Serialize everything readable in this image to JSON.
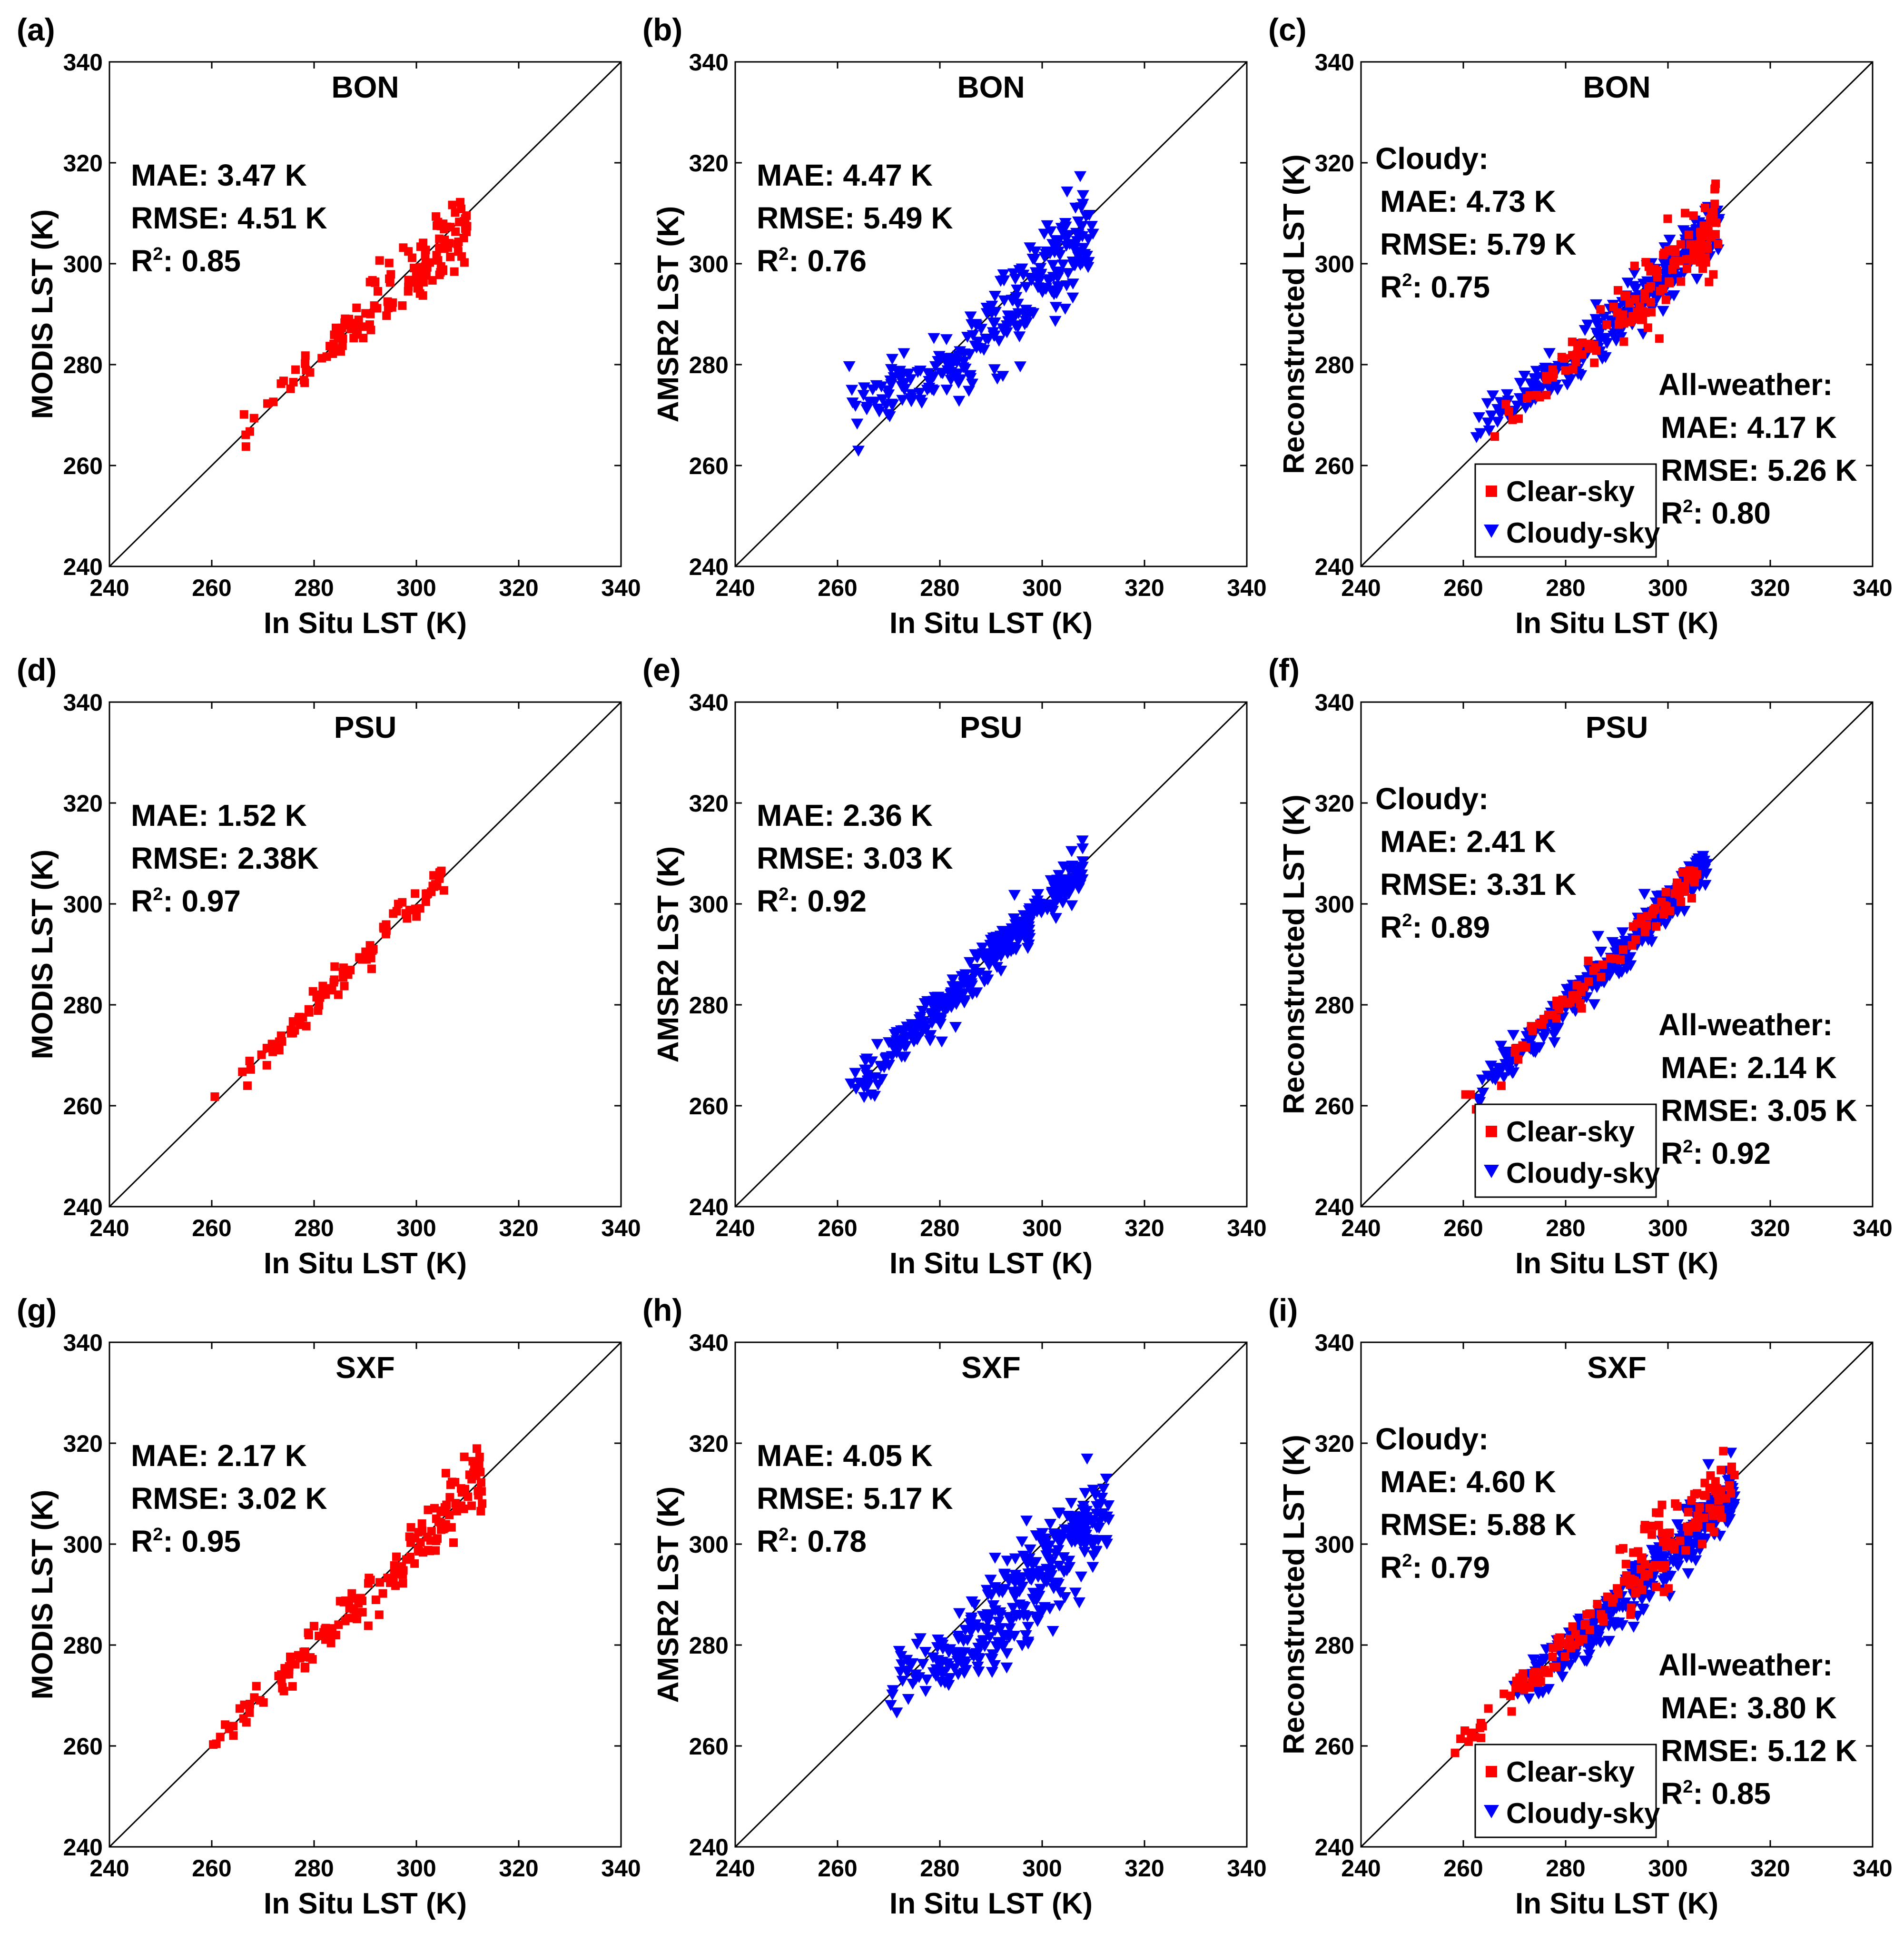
{
  "colors": {
    "clear": "#ff0000",
    "cloudy": "#0000ff",
    "axis": "#000000"
  },
  "chart_data": [
    {
      "panel_label": "(a)",
      "type": "scatter",
      "site": "BON",
      "xlabel": "In Situ LST (K)",
      "ylabel": "MODIS LST (K)",
      "xlim": [
        240,
        340
      ],
      "ylim": [
        240,
        340
      ],
      "xticks": [
        "240",
        "260",
        "280",
        "300",
        "320",
        "340"
      ],
      "yticks": [
        "240",
        "260",
        "280",
        "300",
        "320",
        "340"
      ],
      "stats": [
        "MAE: 3.47 K",
        "RMSE: 4.51 K",
        "R²: 0.85"
      ],
      "series": [
        {
          "name": "MODIS",
          "marker": "square",
          "color": "#ff0000"
        }
      ]
    },
    {
      "panel_label": "(b)",
      "type": "scatter",
      "site": "BON",
      "xlabel": "In Situ LST (K)",
      "ylabel": "AMSR2 LST (K)",
      "xlim": [
        240,
        340
      ],
      "ylim": [
        240,
        340
      ],
      "xticks": [
        "240",
        "260",
        "280",
        "300",
        "320",
        "340"
      ],
      "yticks": [
        "240",
        "260",
        "280",
        "300",
        "320",
        "340"
      ],
      "stats": [
        "MAE: 4.47 K",
        "RMSE: 5.49 K",
        "R²: 0.76"
      ],
      "series": [
        {
          "name": "AMSR2",
          "marker": "triangle",
          "color": "#0000ff"
        }
      ]
    },
    {
      "panel_label": "(c)",
      "type": "scatter",
      "site": "BON",
      "xlabel": "In Situ LST (K)",
      "ylabel": "Reconstructed LST (K)",
      "xlim": [
        240,
        340
      ],
      "ylim": [
        240,
        340
      ],
      "xticks": [
        "240",
        "260",
        "280",
        "300",
        "320",
        "340"
      ],
      "yticks": [
        "240",
        "260",
        "280",
        "300",
        "320",
        "340"
      ],
      "cloudy_stats": [
        "Cloudy:",
        "MAE: 4.73 K",
        "RMSE: 5.79 K",
        "R²: 0.75"
      ],
      "all_stats": [
        "All-weather:",
        "MAE: 4.17 K",
        "RMSE: 5.26 K",
        "R²: 0.80"
      ],
      "legend": [
        "Clear-sky",
        "Cloudy-sky"
      ]
    },
    {
      "panel_label": "(d)",
      "type": "scatter",
      "site": "PSU",
      "xlabel": "In Situ LST (K)",
      "ylabel": "MODIS LST (K)",
      "xlim": [
        240,
        340
      ],
      "ylim": [
        240,
        340
      ],
      "xticks": [
        "240",
        "260",
        "280",
        "300",
        "320",
        "340"
      ],
      "yticks": [
        "240",
        "260",
        "280",
        "300",
        "320",
        "340"
      ],
      "stats": [
        "MAE: 1.52 K",
        "RMSE: 2.38K",
        "R²: 0.97"
      ],
      "series": [
        {
          "name": "MODIS",
          "marker": "square",
          "color": "#ff0000"
        }
      ]
    },
    {
      "panel_label": "(e)",
      "type": "scatter",
      "site": "PSU",
      "xlabel": "In Situ LST (K)",
      "ylabel": "AMSR2 LST (K)",
      "xlim": [
        240,
        340
      ],
      "ylim": [
        240,
        340
      ],
      "xticks": [
        "240",
        "260",
        "280",
        "300",
        "320",
        "340"
      ],
      "yticks": [
        "240",
        "260",
        "280",
        "300",
        "320",
        "340"
      ],
      "stats": [
        "MAE: 2.36 K",
        "RMSE: 3.03 K",
        "R²: 0.92"
      ],
      "series": [
        {
          "name": "AMSR2",
          "marker": "triangle",
          "color": "#0000ff"
        }
      ]
    },
    {
      "panel_label": "(f)",
      "type": "scatter",
      "site": "PSU",
      "xlabel": "In Situ LST (K)",
      "ylabel": "Reconstructed LST (K)",
      "xlim": [
        240,
        340
      ],
      "ylim": [
        240,
        340
      ],
      "xticks": [
        "240",
        "260",
        "280",
        "300",
        "320",
        "340"
      ],
      "yticks": [
        "240",
        "260",
        "280",
        "300",
        "320",
        "340"
      ],
      "cloudy_stats": [
        "Cloudy:",
        "MAE: 2.41 K",
        "RMSE: 3.31 K",
        "R²: 0.89"
      ],
      "all_stats": [
        "All-weather:",
        "MAE: 2.14 K",
        "RMSE: 3.05 K",
        "R²: 0.92"
      ],
      "legend": [
        "Clear-sky",
        "Cloudy-sky"
      ]
    },
    {
      "panel_label": "(g)",
      "type": "scatter",
      "site": "SXF",
      "xlabel": "In Situ LST (K)",
      "ylabel": "MODIS LST (K)",
      "xlim": [
        240,
        340
      ],
      "ylim": [
        240,
        340
      ],
      "xticks": [
        "240",
        "260",
        "280",
        "300",
        "320",
        "340"
      ],
      "yticks": [
        "240",
        "260",
        "280",
        "300",
        "320",
        "340"
      ],
      "stats": [
        "MAE: 2.17 K",
        "RMSE: 3.02 K",
        "R²: 0.95"
      ],
      "series": [
        {
          "name": "MODIS",
          "marker": "square",
          "color": "#ff0000"
        }
      ]
    },
    {
      "panel_label": "(h)",
      "type": "scatter",
      "site": "SXF",
      "xlabel": "In Situ LST (K)",
      "ylabel": "AMSR2 LST (K)",
      "xlim": [
        240,
        340
      ],
      "ylim": [
        240,
        340
      ],
      "xticks": [
        "240",
        "260",
        "280",
        "300",
        "320",
        "340"
      ],
      "yticks": [
        "240",
        "260",
        "280",
        "300",
        "320",
        "340"
      ],
      "stats": [
        "MAE: 4.05 K",
        "RMSE: 5.17 K",
        "R²: 0.78"
      ],
      "series": [
        {
          "name": "AMSR2",
          "marker": "triangle",
          "color": "#0000ff"
        }
      ]
    },
    {
      "panel_label": "(i)",
      "type": "scatter",
      "site": "SXF",
      "xlabel": "In Situ LST (K)",
      "ylabel": "Reconstructed LST (K)",
      "xlim": [
        240,
        340
      ],
      "ylim": [
        240,
        340
      ],
      "xticks": [
        "240",
        "260",
        "280",
        "300",
        "320",
        "340"
      ],
      "yticks": [
        "240",
        "260",
        "280",
        "300",
        "320",
        "340"
      ],
      "cloudy_stats": [
        "Cloudy:",
        "MAE: 4.60 K",
        "RMSE: 5.88 K",
        "R²: 0.79"
      ],
      "all_stats": [
        "All-weather:",
        "MAE: 3.80 K",
        "RMSE: 5.12 K",
        "R²: 0.85"
      ],
      "legend": [
        "Clear-sky",
        "Cloudy-sky"
      ]
    }
  ]
}
